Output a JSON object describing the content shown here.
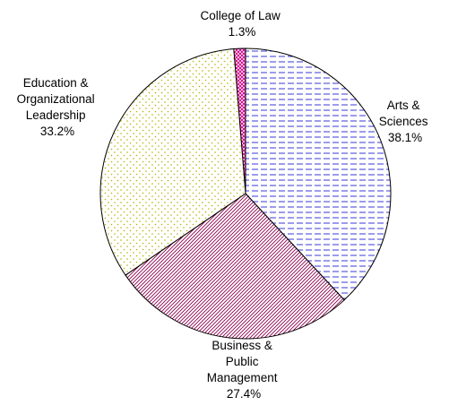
{
  "chart_data": {
    "type": "pie",
    "title": "",
    "start_angle_deg": -4.68,
    "direction": "clockwise",
    "slices": [
      {
        "name": "College of Law",
        "label_lines": [
          "College of Law"
        ],
        "pct_label": "1.3%",
        "value": 1.3,
        "color": "#d6008a",
        "pattern": "cross"
      },
      {
        "name": "Arts & Sciences",
        "label_lines": [
          "Arts &",
          "Sciences"
        ],
        "pct_label": "38.1%",
        "value": 38.1,
        "color": "#3a3ad8",
        "pattern": "dash"
      },
      {
        "name": "Business & Public Management",
        "label_lines": [
          "Business &",
          "Public",
          "Management"
        ],
        "pct_label": "27.4%",
        "value": 27.4,
        "color": "#900050",
        "pattern": "diag"
      },
      {
        "name": "Education & Organizational Leadership",
        "label_lines": [
          "Education &",
          "Organizational",
          "Leadership"
        ],
        "pct_label": "33.2%",
        "value": 33.2,
        "color": "#b4b400",
        "pattern": "dots"
      }
    ]
  }
}
